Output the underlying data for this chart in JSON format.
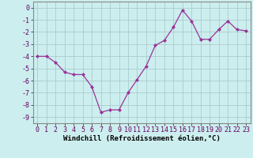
{
  "x": [
    0,
    1,
    2,
    3,
    4,
    5,
    6,
    7,
    8,
    9,
    10,
    11,
    12,
    13,
    14,
    15,
    16,
    17,
    18,
    19,
    20,
    21,
    22,
    23
  ],
  "y": [
    -4.0,
    -4.0,
    -4.5,
    -5.3,
    -5.5,
    -5.5,
    -6.5,
    -8.6,
    -8.4,
    -8.4,
    -7.0,
    -5.9,
    -4.8,
    -3.1,
    -2.7,
    -1.6,
    -0.2,
    -1.1,
    -2.6,
    -2.6,
    -1.8,
    -1.1,
    -1.8,
    -1.9
  ],
  "line_color": "#993399",
  "marker": "D",
  "marker_size": 2,
  "bg_color": "#cceeee",
  "grid_color": "#aacccc",
  "xlabel": "Windchill (Refroidissement éolien,°C)",
  "xlabel_fontsize": 6.5,
  "ylabel_ticks": [
    0,
    -1,
    -2,
    -3,
    -4,
    -5,
    -6,
    -7,
    -8,
    -9
  ],
  "xtick_labels": [
    "0",
    "1",
    "2",
    "3",
    "4",
    "5",
    "6",
    "7",
    "8",
    "9",
    "10",
    "11",
    "12",
    "13",
    "14",
    "15",
    "16",
    "17",
    "18",
    "19",
    "20",
    "21",
    "22",
    "23"
  ],
  "ylim": [
    -9.5,
    0.5
  ],
  "xlim": [
    -0.5,
    23.5
  ],
  "tick_fontsize": 6,
  "spine_color": "#888888"
}
